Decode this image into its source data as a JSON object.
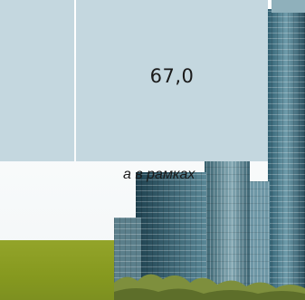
{
  "table": {
    "cell_value": "67,0"
  },
  "caption": {
    "text": "а в рамках"
  },
  "colors": {
    "cell_bg": "#c4d7df",
    "green_block": "#8a9c24",
    "building_glass": "#4f7f90"
  }
}
